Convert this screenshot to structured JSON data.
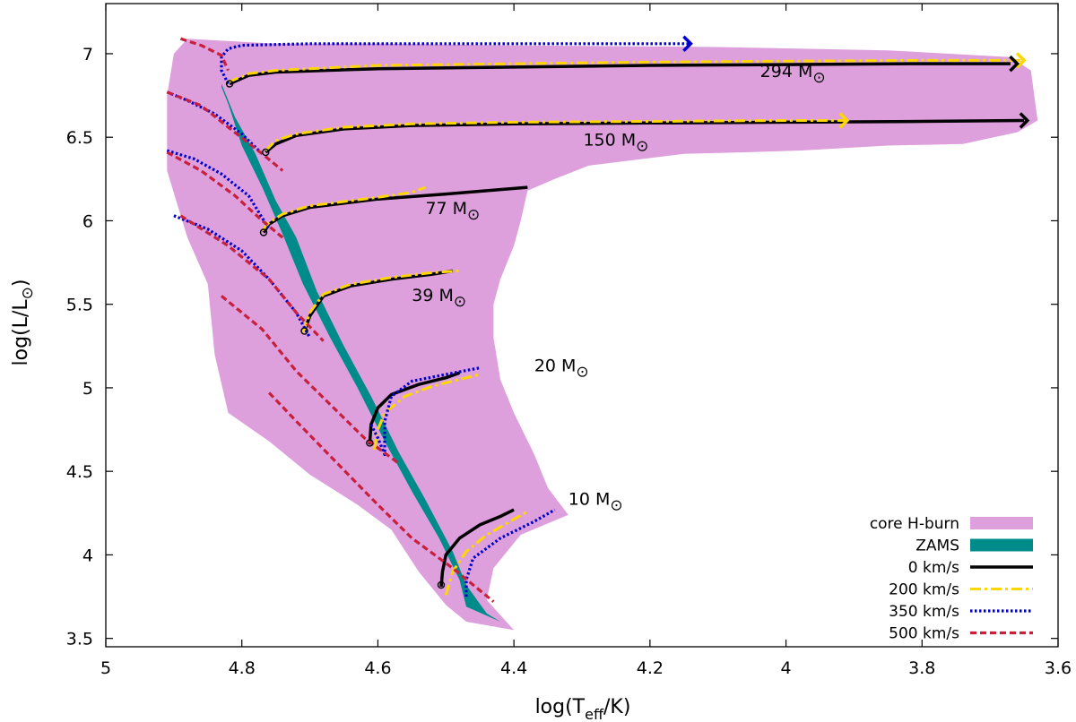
{
  "chart_data": {
    "type": "line",
    "xlabel": {
      "main": "log(T",
      "sub": "eff",
      "tail": "/K)"
    },
    "ylabel": {
      "main": "log(L/L",
      "sun": "⊙",
      "tail": ")"
    },
    "xlim": [
      5,
      3.6
    ],
    "ylim": [
      3.45,
      7.3
    ],
    "x_reversed": true,
    "grid": false,
    "legend_position": "bottom-right",
    "x_ticks": [
      5,
      4.8,
      4.6,
      4.4,
      4.2,
      4,
      3.8,
      3.6
    ],
    "x_tick_labels": [
      "5",
      "4.8",
      "4.6",
      "4.4",
      "4.2",
      "4",
      "3.8",
      "3.6"
    ],
    "y_ticks": [
      3.5,
      4,
      4.5,
      5,
      5.5,
      6,
      6.5,
      7
    ],
    "y_tick_labels": [
      "3.5",
      "4",
      "4.5",
      "5",
      "5.5",
      "6",
      "6.5",
      "7"
    ],
    "colors": {
      "core_h_burn": "#dda0dd",
      "zams": "#008b8b",
      "v0": "#000000",
      "v200": "#ffd700",
      "v350": "#0000cd",
      "v500": "#c8203c"
    },
    "mass_labels": [
      {
        "text": "294 M",
        "sun": "⊙",
        "x": 3.99,
        "y": 6.86
      },
      {
        "text": "150 M",
        "sun": "⊙",
        "x": 4.25,
        "y": 6.45
      },
      {
        "text": "77 M",
        "sun": "⊙",
        "x": 4.49,
        "y": 6.04
      },
      {
        "text": "39 M",
        "sun": "⊙",
        "x": 4.51,
        "y": 5.52
      },
      {
        "text": "20 M",
        "sun": "⊙",
        "x": 4.33,
        "y": 5.1
      },
      {
        "text": "10 M",
        "sun": "⊙",
        "x": 4.28,
        "y": 4.3
      }
    ],
    "regions": [
      {
        "name": "core H-burn",
        "points": [
          [
            4.88,
            7.09
          ],
          [
            4.75,
            7.06
          ],
          [
            4.6,
            7.06
          ],
          [
            4.4,
            7.05
          ],
          [
            4.1,
            7.04
          ],
          [
            3.85,
            7.02
          ],
          [
            3.67,
            6.98
          ],
          [
            3.64,
            6.9
          ],
          [
            3.63,
            6.6
          ],
          [
            3.66,
            6.53
          ],
          [
            3.74,
            6.46
          ],
          [
            3.85,
            6.45
          ],
          [
            3.98,
            6.42
          ],
          [
            4.06,
            6.41
          ],
          [
            4.15,
            6.4
          ],
          [
            4.21,
            6.37
          ],
          [
            4.29,
            6.33
          ],
          [
            4.34,
            6.25
          ],
          [
            4.38,
            6.18
          ],
          [
            4.39,
            6.0
          ],
          [
            4.4,
            5.85
          ],
          [
            4.42,
            5.65
          ],
          [
            4.43,
            5.5
          ],
          [
            4.43,
            5.3
          ],
          [
            4.42,
            5.05
          ],
          [
            4.4,
            4.85
          ],
          [
            4.37,
            4.6
          ],
          [
            4.35,
            4.4
          ],
          [
            4.32,
            4.24
          ],
          [
            4.39,
            4.12
          ],
          [
            4.43,
            3.92
          ],
          [
            4.44,
            3.73
          ],
          [
            4.4,
            3.55
          ],
          [
            4.47,
            3.6
          ],
          [
            4.5,
            3.7
          ],
          [
            4.54,
            3.9
          ],
          [
            4.58,
            4.15
          ],
          [
            4.63,
            4.3
          ],
          [
            4.7,
            4.48
          ],
          [
            4.76,
            4.68
          ],
          [
            4.82,
            4.85
          ],
          [
            4.84,
            5.2
          ],
          [
            4.85,
            5.62
          ],
          [
            4.88,
            5.9
          ],
          [
            4.91,
            6.3
          ],
          [
            4.91,
            6.75
          ],
          [
            4.9,
            7.0
          ]
        ]
      },
      {
        "name": "ZAMS",
        "points": [
          [
            4.83,
            6.82
          ],
          [
            4.81,
            6.62
          ],
          [
            4.78,
            6.4
          ],
          [
            4.75,
            6.12
          ],
          [
            4.72,
            5.9
          ],
          [
            4.69,
            5.58
          ],
          [
            4.65,
            5.25
          ],
          [
            4.61,
            4.95
          ],
          [
            4.57,
            4.62
          ],
          [
            4.53,
            4.33
          ],
          [
            4.49,
            4.02
          ],
          [
            4.47,
            3.82
          ],
          [
            4.44,
            3.65
          ],
          [
            4.42,
            3.6
          ],
          [
            4.47,
            3.69
          ],
          [
            4.48,
            3.85
          ],
          [
            4.51,
            4.1
          ],
          [
            4.55,
            4.38
          ],
          [
            4.59,
            4.68
          ],
          [
            4.63,
            5.0
          ],
          [
            4.67,
            5.3
          ],
          [
            4.71,
            5.62
          ],
          [
            4.74,
            5.92
          ],
          [
            4.77,
            6.2
          ],
          [
            4.8,
            6.45
          ],
          [
            4.82,
            6.7
          ],
          [
            4.83,
            6.8
          ]
        ]
      }
    ],
    "series": [
      {
        "name": "0 km/s",
        "key": "v0",
        "dash": "none",
        "width": 3.5,
        "tracks": [
          [
            [
              4.818,
              6.82
            ],
            [
              4.79,
              6.87
            ],
            [
              4.75,
              6.89
            ],
            [
              4.6,
              6.91
            ],
            [
              4.4,
              6.92
            ],
            [
              4.2,
              6.93
            ],
            [
              4.0,
              6.935
            ],
            [
              3.8,
              6.94
            ],
            [
              3.67,
              6.94
            ]
          ],
          [
            [
              4.765,
              6.41
            ],
            [
              4.75,
              6.46
            ],
            [
              4.72,
              6.51
            ],
            [
              4.65,
              6.55
            ],
            [
              4.55,
              6.57
            ],
            [
              4.4,
              6.58
            ],
            [
              4.2,
              6.585
            ],
            [
              4.0,
              6.59
            ],
            [
              3.8,
              6.595
            ],
            [
              3.65,
              6.6
            ]
          ],
          [
            [
              4.768,
              5.93
            ],
            [
              4.76,
              5.98
            ],
            [
              4.74,
              6.03
            ],
            [
              4.7,
              6.08
            ],
            [
              4.6,
              6.13
            ],
            [
              4.5,
              6.16
            ],
            [
              4.44,
              6.18
            ],
            [
              4.38,
              6.2
            ]
          ],
          [
            [
              4.708,
              5.34
            ],
            [
              4.7,
              5.43
            ],
            [
              4.68,
              5.55
            ],
            [
              4.64,
              5.61
            ],
            [
              4.58,
              5.65
            ],
            [
              4.52,
              5.68
            ],
            [
              4.49,
              5.7
            ]
          ],
          [
            [
              4.612,
              4.66
            ],
            [
              4.61,
              4.78
            ],
            [
              4.6,
              4.88
            ],
            [
              4.58,
              4.96
            ],
            [
              4.54,
              5.02
            ],
            [
              4.5,
              5.06
            ],
            [
              4.48,
              5.09
            ]
          ],
          [
            [
              4.507,
              3.81
            ],
            [
              4.505,
              3.9
            ],
            [
              4.5,
              4.0
            ],
            [
              4.48,
              4.1
            ],
            [
              4.45,
              4.18
            ],
            [
              4.42,
              4.23
            ],
            [
              4.4,
              4.27
            ]
          ]
        ]
      },
      {
        "name": "200 km/s",
        "key": "v200",
        "dash": "12,4,3,4",
        "width": 3,
        "tracks": [
          [
            [
              4.82,
              6.83
            ],
            [
              4.79,
              6.88
            ],
            [
              4.75,
              6.9
            ],
            [
              4.6,
              6.93
            ],
            [
              4.4,
              6.94
            ],
            [
              4.2,
              6.95
            ],
            [
              4.0,
              6.955
            ],
            [
              3.8,
              6.96
            ],
            [
              3.65,
              6.96
            ]
          ],
          [
            [
              4.765,
              6.42
            ],
            [
              4.75,
              6.48
            ],
            [
              4.72,
              6.52
            ],
            [
              4.65,
              6.56
            ],
            [
              4.55,
              6.58
            ],
            [
              4.4,
              6.59
            ],
            [
              4.2,
              6.595
            ],
            [
              4.0,
              6.6
            ],
            [
              3.91,
              6.6
            ]
          ],
          [
            [
              4.77,
              5.94
            ],
            [
              4.76,
              5.99
            ],
            [
              4.74,
              6.04
            ],
            [
              4.7,
              6.09
            ],
            [
              4.6,
              6.14
            ],
            [
              4.55,
              6.17
            ],
            [
              4.53,
              6.2
            ]
          ],
          [
            [
              4.71,
              5.33
            ],
            [
              4.7,
              5.45
            ],
            [
              4.68,
              5.56
            ],
            [
              4.64,
              5.62
            ],
            [
              4.58,
              5.66
            ],
            [
              4.52,
              5.69
            ],
            [
              4.48,
              5.7
            ]
          ],
          [
            [
              4.605,
              4.63
            ],
            [
              4.6,
              4.75
            ],
            [
              4.59,
              4.85
            ],
            [
              4.56,
              4.95
            ],
            [
              4.52,
              5.01
            ],
            [
              4.48,
              5.05
            ],
            [
              4.45,
              5.08
            ]
          ],
          [
            [
              4.5,
              3.76
            ],
            [
              4.49,
              3.9
            ],
            [
              4.47,
              4.02
            ],
            [
              4.44,
              4.12
            ],
            [
              4.41,
              4.19
            ],
            [
              4.38,
              4.26
            ]
          ]
        ]
      },
      {
        "name": "350 km/s",
        "key": "v350",
        "dash": "2.5,2.5",
        "width": 3.2,
        "tracks": [
          [
            [
              4.82,
              6.82
            ],
            [
              4.83,
              6.9
            ],
            [
              4.83,
              6.98
            ],
            [
              4.82,
              7.03
            ],
            [
              4.8,
              7.05
            ],
            [
              4.7,
              7.06
            ],
            [
              4.5,
              7.06
            ],
            [
              4.3,
              7.06
            ],
            [
              4.2,
              7.06
            ],
            [
              4.14,
              7.06
            ]
          ],
          [
            [
              4.91,
              6.77
            ],
            [
              4.88,
              6.72
            ],
            [
              4.84,
              6.64
            ],
            [
              4.8,
              6.52
            ],
            [
              4.77,
              6.4
            ]
          ],
          [
            [
              4.91,
              6.42
            ],
            [
              4.87,
              6.37
            ],
            [
              4.83,
              6.28
            ],
            [
              4.79,
              6.15
            ],
            [
              4.76,
              5.95
            ]
          ],
          [
            [
              4.9,
              6.03
            ],
            [
              4.85,
              5.95
            ],
            [
              4.8,
              5.82
            ],
            [
              4.76,
              5.65
            ],
            [
              4.72,
              5.45
            ],
            [
              4.7,
              5.3
            ]
          ],
          [
            [
              4.61,
              4.78
            ],
            [
              4.6,
              4.7
            ],
            [
              4.59,
              4.6
            ],
            [
              4.59,
              4.8
            ],
            [
              4.58,
              4.95
            ],
            [
              4.55,
              5.04
            ],
            [
              4.5,
              5.08
            ],
            [
              4.45,
              5.12
            ]
          ],
          [
            [
              4.47,
              3.75
            ],
            [
              4.47,
              3.85
            ],
            [
              4.46,
              3.98
            ],
            [
              4.42,
              4.1
            ],
            [
              4.37,
              4.2
            ],
            [
              4.34,
              4.27
            ]
          ]
        ]
      },
      {
        "name": "500 km/s",
        "key": "v500",
        "dash": "7,4",
        "width": 3.2,
        "tracks": [
          [
            [
              4.89,
              7.09
            ],
            [
              4.86,
              7.05
            ],
            [
              4.83,
              6.99
            ],
            [
              4.82,
              6.9
            ]
          ],
          [
            [
              4.91,
              6.77
            ],
            [
              4.86,
              6.69
            ],
            [
              4.82,
              6.56
            ],
            [
              4.77,
              6.4
            ],
            [
              4.74,
              6.3
            ]
          ],
          [
            [
              4.91,
              6.41
            ],
            [
              4.86,
              6.3
            ],
            [
              4.81,
              6.15
            ],
            [
              4.77,
              6.0
            ],
            [
              4.74,
              5.9
            ]
          ],
          [
            [
              4.89,
              6.03
            ],
            [
              4.82,
              5.85
            ],
            [
              4.76,
              5.65
            ],
            [
              4.72,
              5.45
            ],
            [
              4.68,
              5.28
            ]
          ],
          [
            [
              4.83,
              5.55
            ],
            [
              4.77,
              5.35
            ],
            [
              4.72,
              5.1
            ],
            [
              4.67,
              4.9
            ],
            [
              4.62,
              4.7
            ],
            [
              4.57,
              4.55
            ]
          ],
          [
            [
              4.76,
              4.97
            ],
            [
              4.72,
              4.8
            ],
            [
              4.66,
              4.55
            ],
            [
              4.6,
              4.3
            ],
            [
              4.55,
              4.1
            ],
            [
              4.49,
              3.92
            ],
            [
              4.43,
              3.72
            ]
          ]
        ]
      }
    ],
    "markers": [
      {
        "x": 4.818,
        "y": 6.82
      },
      {
        "x": 4.765,
        "y": 6.41
      },
      {
        "x": 4.768,
        "y": 5.93
      },
      {
        "x": 4.708,
        "y": 5.34
      },
      {
        "x": 4.612,
        "y": 4.67
      },
      {
        "x": 4.507,
        "y": 3.82
      }
    ],
    "legend": [
      {
        "label": "core H-burn",
        "key": "core_h_burn",
        "kind": "fill"
      },
      {
        "label": "ZAMS",
        "key": "zams",
        "kind": "fill"
      },
      {
        "label": "0 km/s",
        "key": "v0",
        "kind": "line",
        "dash": "none",
        "width": 3.5
      },
      {
        "label": "200 km/s",
        "key": "v200",
        "kind": "line",
        "dash": "12,4,3,4",
        "width": 3
      },
      {
        "label": "350 km/s",
        "key": "v350",
        "kind": "line",
        "dash": "2.5,2.5",
        "width": 3.2
      },
      {
        "label": "500 km/s",
        "key": "v500",
        "kind": "line",
        "dash": "7,4",
        "width": 3.2
      }
    ]
  }
}
